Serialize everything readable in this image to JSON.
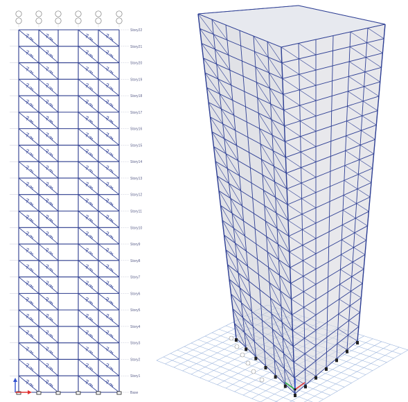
{
  "elevation": {
    "story_labels": [
      "Story22",
      "Story21",
      "Story20",
      "Story19",
      "Story18",
      "Story17",
      "Story16",
      "Story15",
      "Story14",
      "Story13",
      "Story12",
      "Story11",
      "Story10",
      "Story9",
      "Story8",
      "Story7",
      "Story6",
      "Story5",
      "Story4",
      "Story3",
      "Story2",
      "Story1",
      "Base"
    ],
    "grid_columns": 6,
    "braced_bays": [
      0,
      1,
      3,
      4
    ],
    "frame_color": "#2a3a8c",
    "brace_color": "#3a4a9c"
  },
  "iso": {
    "frame_color": "#2e3f94",
    "glass_color": "#c9cbd4",
    "floor_grid_color": "#9fb7de",
    "stories": 22
  },
  "axes": {
    "x_color": "#e03030",
    "y_color": "#20b040",
    "z_color": "#3050d0"
  }
}
